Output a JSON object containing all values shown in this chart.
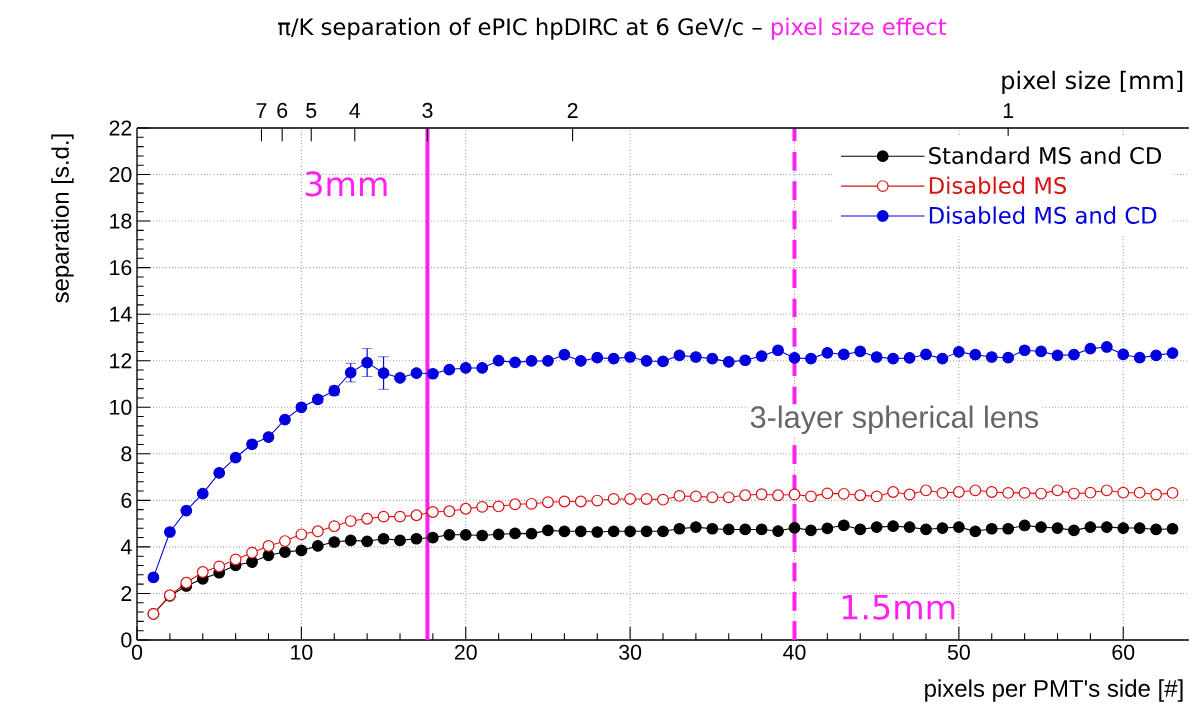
{
  "chart_data": {
    "type": "line",
    "title": "π/K separation of ePIC hpDIRC at 6 GeV/c –",
    "subtitle": "pixel size effect",
    "xlabel": "pixels per PMT's side [#]",
    "ylabel": "separation [s.d.]",
    "x2label": "pixel size [mm]",
    "xlim": [
      0,
      64
    ],
    "ylim": [
      0,
      22
    ],
    "xticks": [
      0,
      10,
      20,
      30,
      40,
      50,
      60
    ],
    "yticks": [
      0,
      2,
      4,
      6,
      8,
      10,
      12,
      14,
      16,
      18,
      20,
      22
    ],
    "x": [
      1,
      2,
      3,
      4,
      5,
      6,
      7,
      8,
      9,
      10,
      11,
      12,
      13,
      14,
      15,
      16,
      17,
      18,
      19,
      20,
      21,
      22,
      23,
      24,
      25,
      26,
      27,
      28,
      29,
      30,
      31,
      32,
      33,
      34,
      35,
      36,
      37,
      38,
      39,
      40,
      41,
      42,
      43,
      44,
      45,
      46,
      47,
      48,
      49,
      50,
      51,
      52,
      53,
      54,
      55,
      56,
      57,
      58,
      59,
      60,
      61,
      62,
      63
    ],
    "series": [
      {
        "name": "Standard MS and CD",
        "color": "#000000",
        "values": [
          1.12,
          1.9,
          2.32,
          2.63,
          2.89,
          3.21,
          3.35,
          3.64,
          3.78,
          3.85,
          4.04,
          4.21,
          4.28,
          4.24,
          4.35,
          4.28,
          4.35,
          4.4,
          4.52,
          4.52,
          4.49,
          4.54,
          4.58,
          4.57,
          4.71,
          4.67,
          4.67,
          4.64,
          4.67,
          4.67,
          4.67,
          4.67,
          4.78,
          4.85,
          4.78,
          4.75,
          4.75,
          4.75,
          4.68,
          4.82,
          4.71,
          4.8,
          4.93,
          4.75,
          4.85,
          4.89,
          4.85,
          4.75,
          4.81,
          4.85,
          4.67,
          4.78,
          4.78,
          4.92,
          4.85,
          4.81,
          4.71,
          4.85,
          4.85,
          4.81,
          4.81,
          4.75,
          4.78
        ]
      },
      {
        "name": "Disabled MS",
        "color": "#dd1111",
        "values": [
          1.12,
          1.92,
          2.46,
          2.92,
          3.16,
          3.46,
          3.75,
          4.04,
          4.25,
          4.54,
          4.67,
          4.89,
          5.11,
          5.21,
          5.3,
          5.3,
          5.36,
          5.5,
          5.53,
          5.64,
          5.72,
          5.74,
          5.83,
          5.85,
          5.92,
          5.95,
          5.95,
          5.99,
          6.06,
          6.06,
          6.06,
          6.03,
          6.19,
          6.17,
          6.13,
          6.13,
          6.22,
          6.26,
          6.22,
          6.25,
          6.17,
          6.3,
          6.28,
          6.22,
          6.17,
          6.36,
          6.25,
          6.43,
          6.32,
          6.36,
          6.43,
          6.36,
          6.32,
          6.32,
          6.29,
          6.43,
          6.29,
          6.33,
          6.43,
          6.33,
          6.33,
          6.25,
          6.32
        ]
      },
      {
        "name": "Disabled MS and CD",
        "color": "#0000dd",
        "values": [
          2.69,
          4.64,
          5.56,
          6.29,
          7.18,
          7.84,
          8.41,
          8.72,
          9.47,
          10.0,
          10.34,
          10.71,
          11.49,
          11.92,
          11.47,
          11.26,
          11.47,
          11.44,
          11.62,
          11.69,
          11.69,
          12.0,
          11.93,
          11.99,
          11.99,
          12.26,
          11.99,
          12.13,
          12.09,
          12.16,
          11.99,
          11.97,
          12.23,
          12.16,
          12.09,
          11.95,
          12.02,
          12.2,
          12.45,
          12.12,
          12.09,
          12.34,
          12.27,
          12.4,
          12.16,
          12.09,
          12.12,
          12.27,
          12.09,
          12.38,
          12.26,
          12.16,
          12.13,
          12.45,
          12.4,
          12.23,
          12.26,
          12.52,
          12.59,
          12.27,
          12.13,
          12.23,
          12.33
        ],
        "errors": [
          null,
          null,
          null,
          null,
          null,
          null,
          null,
          null,
          null,
          null,
          0.15,
          0.2,
          0.4,
          0.6,
          0.7,
          null,
          null,
          null,
          null,
          null,
          null,
          null,
          null,
          null,
          null,
          null,
          null,
          null,
          null,
          null,
          null,
          null,
          null,
          null,
          null,
          null,
          null,
          null,
          null,
          null,
          null,
          null,
          null,
          null,
          null,
          null,
          null,
          null,
          null,
          null,
          null,
          null,
          null,
          null,
          null,
          null,
          null,
          null,
          null,
          null,
          null,
          null,
          null
        ]
      }
    ],
    "marker": "circle",
    "grid": true,
    "legend": "top right",
    "ref_lines": [
      {
        "axis": "x",
        "value": 17.67,
        "label": "3mm",
        "color": "#ff22ee",
        "line_style": "solid"
      },
      {
        "axis": "x",
        "value": 40,
        "label": "1.5mm",
        "color": "#ff22ee",
        "line_style": "dashed"
      }
    ],
    "annotations": [
      "3-layer spherical lens",
      "7",
      "6",
      "5",
      "4",
      "3",
      "2",
      "1"
    ]
  }
}
